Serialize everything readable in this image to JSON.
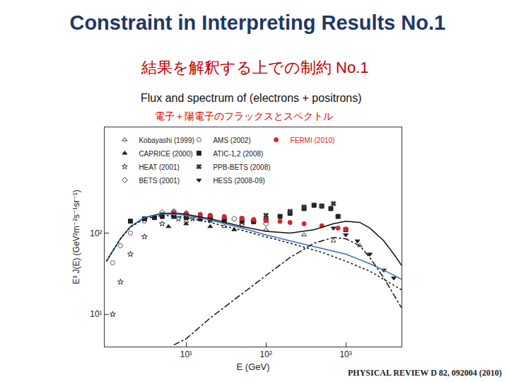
{
  "chart_data": {
    "type": "scatter",
    "title": "Constraint in Interpreting Results No.1",
    "subtitle": [
      "結果を解釈する上での制約 No.1",
      "Flux and spectrum of (electrons + positrons)",
      "電子＋陽電子のフラックスとスペクトル"
    ],
    "annotations": [
      "PHYSICAL REVIEW D 82, 092004 (2010)"
    ],
    "x_label": "E (GeV)",
    "y_label": "E³ J(E) (GeV²m⁻²s⁻¹sr⁻¹)",
    "log": true,
    "grid": false,
    "legend": "upper left",
    "xlim": [
      0.95,
      5000
    ],
    "ylim": [
      4,
      2000
    ],
    "xticks": [
      {
        "value": 10,
        "label": "10¹"
      },
      {
        "value": 100,
        "label": "10²"
      },
      {
        "value": 1000,
        "label": "10³"
      }
    ],
    "yticks": [
      {
        "value": 10,
        "label": "10¹"
      },
      {
        "value": 100,
        "label": "10²"
      }
    ],
    "series": [
      {
        "name": "Kobayashi (1999)",
        "type": "scatter",
        "marker": "triangle-up-open",
        "color": "#333333",
        "x": [
          10,
          30,
          100,
          300,
          700,
          1500
        ],
        "values": [
          140,
          120,
          110,
          95,
          80,
          70
        ]
      },
      {
        "name": "CAPRICE (2000)",
        "type": "scatter",
        "marker": "triangle-up",
        "color": "#222222",
        "x": [
          6,
          10,
          20,
          40
        ],
        "values": [
          120,
          130,
          120,
          110
        ]
      },
      {
        "name": "HEAT (2001)",
        "type": "scatter",
        "marker": "star-open",
        "color": "#333333",
        "x": [
          1.2,
          1.5,
          2,
          3,
          5,
          8,
          12,
          20,
          30,
          50
        ],
        "values": [
          10,
          25,
          55,
          90,
          130,
          150,
          150,
          145,
          140,
          125
        ]
      },
      {
        "name": "BETS (2001)",
        "type": "scatter",
        "marker": "diamond-open",
        "color": "#333333",
        "x": [
          5,
          7,
          10,
          20,
          40,
          70,
          100
        ],
        "values": [
          180,
          185,
          175,
          160,
          150,
          140,
          130
        ]
      },
      {
        "name": "AMS (2002)",
        "type": "scatter",
        "marker": "circle-open",
        "color": "#555555",
        "x": [
          1.2,
          1.5,
          2,
          3,
          5,
          7,
          10,
          15,
          20,
          30
        ],
        "values": [
          43,
          70,
          100,
          140,
          170,
          180,
          175,
          170,
          165,
          160
        ]
      },
      {
        "name": "ATIC-1,2 (2008)",
        "type": "scatter",
        "marker": "square",
        "color": "#222222",
        "x": [
          2,
          3,
          4,
          5,
          7,
          10,
          15,
          20,
          30,
          50,
          70,
          100,
          150,
          200,
          300,
          400,
          500,
          650,
          800,
          1000
        ],
        "values": [
          140,
          150,
          155,
          160,
          160,
          155,
          150,
          148,
          145,
          140,
          138,
          145,
          160,
          175,
          200,
          220,
          215,
          200,
          160,
          110
        ]
      },
      {
        "name": "PPB-BETS (2008)",
        "type": "scatter",
        "marker": "x",
        "color": "#333333",
        "x": [
          10,
          20,
          50,
          100,
          200,
          300,
          500,
          700
        ],
        "values": [
          160,
          155,
          150,
          165,
          185,
          210,
          215,
          230
        ]
      },
      {
        "name": "HESS (2008-09)",
        "type": "scatter",
        "marker": "triangle-down",
        "color": "#222222",
        "x": [
          700,
          1000,
          1400,
          2000,
          3000,
          4000
        ],
        "values": [
          115,
          95,
          80,
          55,
          35,
          28
        ]
      },
      {
        "name": "FERMI (2010)",
        "type": "scatter",
        "marker": "circle",
        "color": "#e0202a",
        "x": [
          7,
          10,
          15,
          20,
          30,
          50,
          70,
          100,
          150,
          200,
          300,
          500,
          800,
          1000
        ],
        "values": [
          175,
          172,
          168,
          165,
          158,
          152,
          147,
          143,
          139,
          135,
          130,
          123,
          115,
          112
        ]
      },
      {
        "type": "line",
        "line_style": "solid",
        "color": "#111111",
        "x": [
          1,
          1.5,
          2,
          3,
          5,
          8,
          10,
          20,
          50,
          100,
          200,
          400,
          700,
          1000,
          1500,
          2000,
          3000,
          4000,
          5000
        ],
        "values": [
          45,
          85,
          120,
          155,
          175,
          175,
          170,
          150,
          120,
          105,
          100,
          110,
          130,
          140,
          135,
          115,
          80,
          55,
          40
        ]
      },
      {
        "type": "line",
        "line_style": "solid",
        "color": "#3a6db5",
        "x": [
          1,
          1.5,
          2,
          3,
          5,
          8,
          10,
          20,
          50,
          100,
          200,
          400,
          700,
          1000,
          2000,
          3000,
          5000
        ],
        "values": [
          45,
          85,
          120,
          155,
          172,
          170,
          165,
          145,
          115,
          95,
          80,
          68,
          60,
          55,
          42,
          35,
          27
        ]
      },
      {
        "type": "line",
        "line_style": "dashdot",
        "color": "#111111",
        "x": [
          7,
          10,
          20,
          50,
          100,
          200,
          400,
          700,
          1000,
          1500,
          2000,
          3000,
          5000
        ],
        "values": [
          4.2,
          5,
          9,
          18,
          30,
          50,
          75,
          88,
          85,
          70,
          50,
          28,
          12
        ]
      },
      {
        "type": "line",
        "line_style": "dot",
        "color": "#111111",
        "x": [
          1,
          1.5,
          2,
          3,
          5,
          8,
          10,
          20,
          50,
          100,
          200,
          500,
          1000,
          2000,
          5000
        ],
        "values": [
          45,
          85,
          118,
          150,
          165,
          160,
          155,
          135,
          108,
          90,
          75,
          58,
          45,
          34,
          20
        ]
      }
    ]
  }
}
